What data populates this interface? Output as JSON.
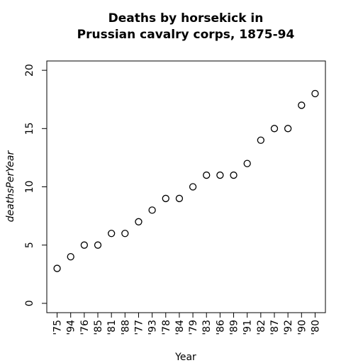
{
  "chart_data": {
    "type": "scatter",
    "title": [
      "Deaths by horsekick in",
      "Prussian cavalry corps, 1875-94"
    ],
    "x_label": "Year",
    "y_label": "deathsPerYear",
    "categories": [
      "'75",
      "'94",
      "'76",
      "'85",
      "'81",
      "'88",
      "'77",
      "'93",
      "'78",
      "'84",
      "'79",
      "'83",
      "'86",
      "'89",
      "'91",
      "'82",
      "'87",
      "'92",
      "'90",
      "'80"
    ],
    "values": [
      3,
      4,
      5,
      5,
      6,
      6,
      7,
      8,
      9,
      9,
      10,
      11,
      11,
      11,
      12,
      14,
      15,
      15,
      17,
      18
    ],
    "color": "#000000",
    "ylim": [
      0,
      20
    ],
    "yticks": [
      0,
      5,
      10,
      15,
      20
    ]
  }
}
